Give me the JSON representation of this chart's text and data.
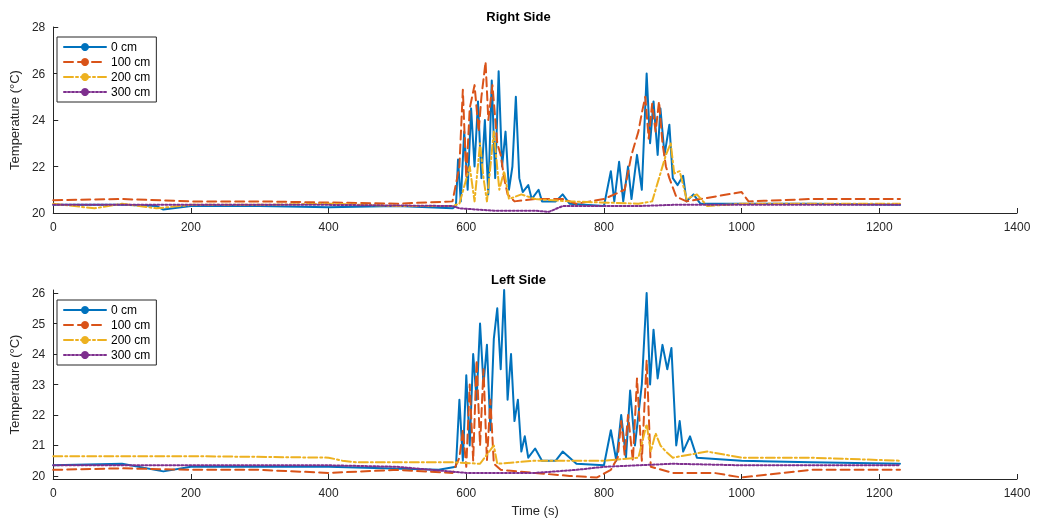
{
  "chart_data": [
    {
      "type": "line",
      "title": "Right Side",
      "ylabel": "Temperature (°C)",
      "xlim": [
        0,
        1400
      ],
      "xticks": [
        0,
        200,
        400,
        600,
        800,
        1000,
        1200,
        1400
      ],
      "ylim": [
        20,
        28
      ],
      "yticks": [
        20,
        22,
        24,
        26,
        28
      ],
      "grid": false,
      "legend": "top left",
      "marker": "none",
      "tick_labels": "xy",
      "series": [
        {
          "name": "0 cm",
          "color": "#0072bd",
          "line_style": "solid",
          "x": [
            0,
            100,
            150,
            160,
            200,
            300,
            400,
            500,
            580,
            585,
            588,
            592,
            597,
            602,
            607,
            612,
            617,
            622,
            627,
            632,
            637,
            642,
            647,
            652,
            657,
            662,
            667,
            672,
            677,
            682,
            690,
            695,
            705,
            710,
            730,
            740,
            750,
            800,
            810,
            815,
            822,
            828,
            835,
            840,
            848,
            855,
            862,
            867,
            872,
            878,
            882,
            888,
            895,
            900,
            907,
            915,
            920,
            930,
            940,
            1000,
            1100,
            1230
          ],
          "values": [
            20.35,
            20.35,
            20.3,
            20.15,
            20.3,
            20.3,
            20.25,
            20.3,
            20.2,
            20.3,
            22.3,
            20.5,
            23.5,
            21,
            24.5,
            22,
            24.8,
            21.5,
            24,
            20.8,
            25.7,
            21.5,
            26.1,
            22,
            23.5,
            21,
            22,
            25,
            21.5,
            20.9,
            21.2,
            20.6,
            21,
            20.5,
            20.5,
            20.8,
            20.4,
            20.3,
            21.8,
            20.5,
            22.2,
            20.5,
            22,
            20.6,
            22.5,
            21,
            26,
            23,
            24.8,
            22.5,
            24.5,
            22.5,
            23.8,
            21.5,
            21.2,
            21.6,
            20.5,
            20.8,
            20.4,
            20.4,
            20.4,
            20.35
          ]
        },
        {
          "name": "100 cm",
          "color": "#d95319",
          "line_style": "dashed",
          "x": [
            0,
            100,
            200,
            300,
            400,
            500,
            580,
            590,
            595,
            600,
            605,
            612,
            618,
            622,
            628,
            632,
            638,
            645,
            650,
            655,
            660,
            670,
            700,
            740,
            760,
            800,
            830,
            840,
            850,
            855,
            860,
            865,
            870,
            875,
            880,
            885,
            890,
            895,
            905,
            920,
            1000,
            1010,
            1100,
            1230
          ],
          "values": [
            20.55,
            20.6,
            20.5,
            20.5,
            20.45,
            20.4,
            20.5,
            22,
            25.3,
            21.5,
            24.5,
            25.5,
            23.5,
            25,
            26.5,
            24,
            25.5,
            23,
            22.5,
            21.5,
            20.8,
            20.5,
            20.6,
            20.6,
            20.4,
            20.6,
            21,
            22.5,
            23.5,
            24.3,
            25,
            23.2,
            24.7,
            23.5,
            24.8,
            23,
            22,
            21.5,
            20.7,
            20.5,
            20.9,
            20.5,
            20.6,
            20.6
          ]
        },
        {
          "name": "200 cm",
          "color": "#edb120",
          "line_style": "dashdot",
          "x": [
            0,
            60,
            100,
            150,
            200,
            300,
            400,
            500,
            580,
            590,
            605,
            612,
            620,
            625,
            630,
            640,
            648,
            655,
            662,
            680,
            700,
            750,
            850,
            870,
            880,
            890,
            897,
            902,
            910,
            920,
            935,
            950,
            1000,
            1230
          ],
          "values": [
            20.4,
            20.2,
            20.4,
            20.2,
            20.35,
            20.35,
            20.4,
            20.3,
            20.3,
            20.4,
            22,
            20.5,
            23,
            21.5,
            20.5,
            23.5,
            21,
            21.8,
            20.6,
            20.8,
            20.6,
            20.5,
            20.4,
            20.5,
            21.5,
            22.5,
            23,
            21.7,
            21.8,
            20.6,
            20.8,
            20.3,
            20.4,
            20.4
          ]
        },
        {
          "name": "300 cm",
          "color": "#7e2f8e",
          "line_style": "dotted",
          "x": [
            0,
            200,
            400,
            580,
            590,
            640,
            700,
            720,
            740,
            850,
            900,
            1230
          ],
          "values": [
            20.35,
            20.35,
            20.35,
            20.3,
            20.2,
            20.1,
            20.1,
            20.05,
            20.3,
            20.3,
            20.35,
            20.35
          ]
        }
      ]
    },
    {
      "type": "line",
      "title": "Left Side",
      "xlabel": "Time (s)",
      "ylabel": "Temperature (°C)",
      "xlim": [
        0,
        1400
      ],
      "xticks": [
        0,
        200,
        400,
        600,
        800,
        1000,
        1200,
        1400
      ],
      "ylim": [
        19.9,
        26.1
      ],
      "yticks": [
        20,
        21,
        22,
        23,
        24,
        25,
        26
      ],
      "grid": false,
      "legend": "top left",
      "marker": "none",
      "series": [
        {
          "name": "0 cm",
          "color": "#0072bd",
          "line_style": "solid",
          "x": [
            0,
            100,
            160,
            200,
            400,
            560,
            585,
            590,
            595,
            600,
            605,
            610,
            615,
            620,
            625,
            630,
            635,
            640,
            645,
            650,
            655,
            660,
            665,
            670,
            675,
            680,
            685,
            690,
            700,
            710,
            730,
            740,
            760,
            800,
            810,
            818,
            825,
            832,
            838,
            845,
            855,
            862,
            867,
            872,
            878,
            885,
            892,
            898,
            905,
            910,
            915,
            925,
            935,
            1000,
            1100,
            1230
          ],
          "values": [
            20.35,
            20.4,
            20.15,
            20.3,
            20.3,
            20.2,
            20.3,
            22.5,
            20.5,
            23.3,
            21,
            24,
            22.5,
            25,
            23,
            24.3,
            21.5,
            24.5,
            25.5,
            23.5,
            26.1,
            22.5,
            24,
            21.8,
            22.5,
            20.8,
            21.3,
            20.6,
            20.9,
            20.5,
            20.5,
            20.8,
            20.4,
            20.35,
            21.5,
            20.5,
            22,
            20.6,
            22.8,
            21,
            23,
            26,
            23,
            24.8,
            23.2,
            24.3,
            23.5,
            24.2,
            21,
            21.8,
            20.8,
            21.3,
            20.6,
            20.5,
            20.45,
            20.4
          ]
        },
        {
          "name": "100 cm",
          "color": "#d95319",
          "line_style": "dashed",
          "x": [
            0,
            100,
            200,
            300,
            400,
            500,
            580,
            590,
            595,
            600,
            605,
            610,
            615,
            620,
            625,
            630,
            635,
            640,
            650,
            700,
            750,
            790,
            810,
            820,
            825,
            830,
            835,
            842,
            848,
            855,
            862,
            868,
            900,
            960,
            1000,
            1100,
            1230
          ],
          "values": [
            20.2,
            20.25,
            20.2,
            20.2,
            20.1,
            20.2,
            20.1,
            20.6,
            21.5,
            20.3,
            23,
            20.5,
            23.8,
            21,
            23.5,
            20.5,
            22.5,
            20.4,
            20.2,
            20.1,
            20,
            19.95,
            20.2,
            20.6,
            21.8,
            20.7,
            22,
            20.5,
            23.2,
            20.5,
            23.8,
            20.3,
            20.1,
            20.1,
            19.95,
            20.2,
            20.2
          ]
        },
        {
          "name": "200 cm",
          "color": "#edb120",
          "line_style": "dashdot",
          "x": [
            0,
            200,
            400,
            420,
            440,
            580,
            620,
            640,
            645,
            700,
            800,
            850,
            862,
            868,
            875,
            882,
            890,
            900,
            950,
            1000,
            1100,
            1230
          ],
          "values": [
            20.65,
            20.65,
            20.6,
            20.5,
            20.45,
            20.45,
            20.4,
            21,
            20.4,
            20.5,
            20.5,
            20.6,
            21.7,
            20.8,
            21.4,
            21,
            20.8,
            20.6,
            20.8,
            20.6,
            20.6,
            20.5
          ]
        },
        {
          "name": "300 cm",
          "color": "#7e2f8e",
          "line_style": "dotted",
          "x": [
            0,
            200,
            400,
            500,
            600,
            700,
            760,
            800,
            850,
            900,
            1000,
            1230
          ],
          "values": [
            20.35,
            20.35,
            20.35,
            20.3,
            20.1,
            20.1,
            20.2,
            20.3,
            20.35,
            20.4,
            20.35,
            20.35
          ]
        }
      ]
    }
  ]
}
